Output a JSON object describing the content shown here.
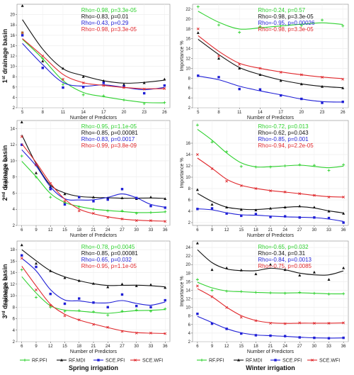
{
  "colors": {
    "RF.PFI": "#2fd12f",
    "RF.MDI": "#111111",
    "SCE.PFI": "#1f1fd6",
    "SCE.WFI": "#e0282c"
  },
  "legend": [
    "RF.PFI",
    "RF.MDI",
    "SCE.PFI",
    "SCE.WFI"
  ],
  "captions": [
    "Spring irrigation",
    "Winter irrigation"
  ],
  "row_labels": [
    {
      "pre": "1",
      "sup": "st",
      "post": " drainage basin"
    },
    {
      "pre": "2",
      "sup": "nd",
      "post": " drainage basin"
    },
    {
      "pre": "3",
      "sup": "rd",
      "post": " drainage basin"
    }
  ],
  "chart_data": [
    {
      "type": "scatter",
      "row": 0,
      "col": 0,
      "xlabel": "Number of Predictors",
      "ylabel": "",
      "xticks": [
        5,
        8,
        11,
        14,
        17,
        20,
        23,
        26
      ],
      "yticks": [
        2,
        4,
        6,
        8,
        10,
        12,
        14,
        16,
        18,
        20
      ],
      "xlim": [
        4.2,
        26.8
      ],
      "ylim": [
        2,
        22
      ],
      "stats": [
        "Rho=-0.98, p=3.3e-05",
        "Rho=-0.83, p=0.01",
        "Rho=-0.43, p=0.29",
        "Rho=-0.98, p=3.3e-05"
      ],
      "series": [
        {
          "name": "RF.PFI",
          "x": [
            5,
            8,
            11,
            14,
            17,
            20,
            23,
            26
          ],
          "values": [
            16.5,
            11.5,
            6.5,
            4.5,
            4.3,
            3.5,
            2.8,
            3.0
          ]
        },
        {
          "name": "RF.MDI",
          "x": [
            5,
            8,
            11,
            14,
            17,
            20,
            23,
            26
          ],
          "values": [
            21.7,
            11.0,
            9.6,
            8.0,
            7.2,
            6.5,
            6.8,
            7.5
          ]
        },
        {
          "name": "SCE.PFI",
          "x": [
            5,
            8,
            11,
            14,
            17,
            20,
            23,
            26
          ],
          "values": [
            16.0,
            9.7,
            5.9,
            6.0,
            6.8,
            6.1,
            4.8,
            6.3
          ]
        },
        {
          "name": "SCE.WFI",
          "x": [
            5,
            8,
            11,
            14,
            17,
            20,
            23,
            26
          ],
          "values": [
            16.5,
            12.0,
            7.5,
            6.8,
            6.3,
            5.9,
            5.6,
            5.7
          ]
        }
      ]
    },
    {
      "type": "scatter",
      "row": 0,
      "col": 1,
      "xlabel": "Number of Predictors",
      "ylabel": "Importance %",
      "xticks": [
        5,
        8,
        11,
        14,
        17,
        20,
        23,
        26
      ],
      "yticks": [
        2,
        4,
        6,
        8,
        10,
        12,
        14,
        16,
        18,
        20,
        22
      ],
      "xlim": [
        4.2,
        26.8
      ],
      "ylim": [
        2,
        23
      ],
      "stats": [
        "Rho=-0.24, p=0.57",
        "Rho=-0.98, p=3.3e-05",
        "Rho=-0.95, p=0.00026",
        "Rho=-0.98, p=3.3e-05"
      ],
      "series": [
        {
          "name": "RF.PFI",
          "x": [
            5,
            8,
            11,
            14,
            17,
            20,
            23,
            26
          ],
          "values": [
            22.5,
            18.8,
            17.3,
            18.5,
            18.6,
            18.7,
            19.8,
            18.6
          ]
        },
        {
          "name": "RF.MDI",
          "x": [
            5,
            8,
            11,
            14,
            17,
            20,
            23,
            26
          ],
          "values": [
            17.2,
            12.0,
            10.0,
            8.7,
            7.5,
            6.8,
            6.3,
            6.0
          ]
        },
        {
          "name": "SCE.PFI",
          "x": [
            5,
            8,
            11,
            14,
            17,
            20,
            23,
            26
          ],
          "values": [
            8.5,
            8.2,
            5.8,
            5.7,
            4.5,
            3.8,
            3.0,
            3.2
          ]
        },
        {
          "name": "SCE.WFI",
          "x": [
            5,
            8,
            11,
            14,
            17,
            20,
            23,
            26
          ],
          "values": [
            18.0,
            12.5,
            10.8,
            10.0,
            9.2,
            8.7,
            8.2,
            7.8
          ]
        }
      ]
    },
    {
      "type": "scatter",
      "row": 1,
      "col": 0,
      "xlabel": "Number of Predictors",
      "ylabel": "Importance %",
      "xticks": [
        6,
        9,
        12,
        15,
        18,
        21,
        24,
        27,
        30,
        33,
        36
      ],
      "yticks": [
        2,
        4,
        6,
        8,
        10,
        12,
        14
      ],
      "xlim": [
        5,
        37
      ],
      "ylim": [
        2,
        15
      ],
      "stats": [
        "Rho=-0.95, p=1.1e-05",
        "Rho=-0.85, p=0.00081",
        "Rho=-0.83, p=0.0017",
        "Rho=-0.99, p=3.8e-09"
      ],
      "series": [
        {
          "name": "RF.PFI",
          "x": [
            6,
            9,
            12,
            15,
            18,
            21,
            24,
            27,
            30,
            33,
            36
          ],
          "values": [
            10.6,
            8.0,
            5.5,
            4.8,
            4.3,
            4.0,
            3.8,
            3.8,
            3.5,
            3.6,
            3.7
          ]
        },
        {
          "name": "RF.MDI",
          "x": [
            6,
            9,
            12,
            15,
            18,
            21,
            24,
            27,
            30,
            33,
            36
          ],
          "values": [
            14.8,
            8.5,
            6.8,
            5.9,
            5.5,
            5.5,
            5.4,
            5.4,
            5.3,
            5.5,
            5.3
          ]
        },
        {
          "name": "SCE.PFI",
          "x": [
            6,
            9,
            12,
            15,
            18,
            21,
            24,
            27,
            30,
            33,
            36
          ],
          "values": [
            12.0,
            9.5,
            6.5,
            4.6,
            5.5,
            5.0,
            5.2,
            6.5,
            5.4,
            4.4,
            4.2
          ]
        },
        {
          "name": "SCE.WFI",
          "x": [
            6,
            9,
            12,
            15,
            18,
            21,
            24,
            27,
            30,
            33,
            36
          ],
          "values": [
            13.0,
            9.5,
            7.2,
            5.0,
            3.8,
            3.5,
            3.0,
            2.8,
            2.6,
            2.6,
            2.5
          ]
        }
      ]
    },
    {
      "type": "scatter",
      "row": 1,
      "col": 1,
      "xlabel": "Number of Predictors",
      "ylabel": "Importance %",
      "xticks": [
        6,
        9,
        12,
        15,
        18,
        21,
        24,
        27,
        30,
        33,
        36
      ],
      "yticks": [
        2,
        4,
        6,
        8,
        10,
        12,
        14,
        16
      ],
      "xlim": [
        5,
        37
      ],
      "ylim": [
        1.5,
        20
      ],
      "stats": [
        "Rho=-0.72, p=0.013",
        "Rho=-0.62, p=0.043",
        "Rho=-0.85, p=0.001",
        "Rho=-0.94, p=2.2e-05"
      ],
      "series": [
        {
          "name": "RF.PFI",
          "x": [
            6,
            9,
            12,
            15,
            18,
            21,
            24,
            27,
            30,
            33,
            36
          ],
          "values": [
            19.2,
            16.2,
            14.5,
            11.9,
            11.8,
            11.8,
            12.0,
            12.2,
            12.1,
            11.2,
            12.2
          ]
        },
        {
          "name": "RF.MDI",
          "x": [
            6,
            9,
            12,
            15,
            18,
            21,
            24,
            27,
            30,
            33,
            36
          ],
          "values": [
            7.8,
            5.2,
            4.7,
            4.3,
            4.2,
            4.5,
            4.7,
            4.9,
            4.7,
            4.0,
            3.6
          ]
        },
        {
          "name": "SCE.PFI",
          "x": [
            6,
            9,
            12,
            15,
            18,
            21,
            24,
            27,
            30,
            33,
            36
          ],
          "values": [
            4.4,
            4.5,
            3.6,
            3.2,
            3.5,
            3.0,
            3.1,
            2.9,
            2.9,
            2.8,
            2.0
          ]
        },
        {
          "name": "SCE.WFI",
          "x": [
            6,
            9,
            12,
            15,
            18,
            21,
            24,
            27,
            30,
            33,
            36
          ],
          "values": [
            14.0,
            11.5,
            9.3,
            8.5,
            8.0,
            7.6,
            7.4,
            7.1,
            6.8,
            6.5,
            6.5
          ]
        }
      ]
    },
    {
      "type": "scatter",
      "row": 2,
      "col": 0,
      "xlabel": "Number of Predictors",
      "ylabel": "Importance %",
      "xticks": [
        6,
        9,
        12,
        15,
        18,
        21,
        24,
        27,
        30,
        33,
        36
      ],
      "yticks": [
        2,
        4,
        6,
        8,
        10,
        12,
        14,
        16,
        18
      ],
      "xlim": [
        5,
        37
      ],
      "ylim": [
        2,
        19.5
      ],
      "stats": [
        "Rho=-0.78, p=0.0045",
        "Rho=-0.85, p=0.00081",
        "Rho=-0.65, p=0.032",
        "Rho=-0.95, p=1.1e-05"
      ],
      "series": [
        {
          "name": "RF.PFI",
          "x": [
            6,
            9,
            12,
            15,
            18,
            21,
            24,
            27,
            30,
            33,
            36
          ],
          "values": [
            14.5,
            9.7,
            8.0,
            7.3,
            7.4,
            7.2,
            6.6,
            7.3,
            7.5,
            7.3,
            7.7
          ]
        },
        {
          "name": "RF.MDI",
          "x": [
            6,
            9,
            12,
            15,
            18,
            21,
            24,
            27,
            30,
            33,
            36
          ],
          "values": [
            18.8,
            15.6,
            14.3,
            13.1,
            12.6,
            12.1,
            11.5,
            12.0,
            11.7,
            11.9,
            11.4
          ]
        },
        {
          "name": "SCE.PFI",
          "x": [
            6,
            9,
            12,
            15,
            18,
            21,
            24,
            27,
            30,
            33,
            36
          ],
          "values": [
            17.0,
            15.0,
            10.3,
            8.6,
            9.5,
            8.8,
            8.0,
            10.2,
            8.2,
            8.0,
            9.2
          ]
        },
        {
          "name": "SCE.WFI",
          "x": [
            6,
            9,
            12,
            15,
            18,
            21,
            24,
            27,
            30,
            33,
            36
          ],
          "values": [
            16.5,
            11.0,
            8.3,
            6.5,
            5.8,
            5.0,
            4.5,
            3.8,
            3.5,
            3.5,
            3.4
          ]
        }
      ]
    },
    {
      "type": "scatter",
      "row": 2,
      "col": 1,
      "xlabel": "Number of Predictors",
      "ylabel": "Importance %",
      "xticks": [
        6,
        9,
        12,
        15,
        18,
        21,
        24,
        27,
        30,
        33,
        36
      ],
      "yticks": [
        2,
        4,
        6,
        8,
        10,
        12,
        14,
        16,
        18,
        20,
        22,
        24
      ],
      "xlim": [
        5,
        37
      ],
      "ylim": [
        2,
        25.5
      ],
      "stats": [
        "Rho=-0.65, p=0.032",
        "Rho=-0.34, p=0.31",
        "Rho=-0.84, p=0.0013",
        "Rho=-0.75, p=0.0085"
      ],
      "series": [
        {
          "name": "RF.PFI",
          "x": [
            6,
            9,
            12,
            15,
            18,
            21,
            24,
            27,
            30,
            33,
            36
          ],
          "values": [
            16.5,
            14.0,
            13.8,
            13.7,
            13.5,
            13.4,
            13.3,
            13.5,
            13.3,
            13.1,
            13.2
          ]
        },
        {
          "name": "RF.MDI",
          "x": [
            6,
            9,
            12,
            15,
            18,
            21,
            24,
            27,
            30,
            33,
            36
          ],
          "values": [
            25.0,
            18.8,
            19.2,
            18.7,
            17.8,
            20.0,
            18.8,
            17.5,
            18.2,
            16.5,
            19.2
          ]
        },
        {
          "name": "SCE.PFI",
          "x": [
            6,
            9,
            12,
            15,
            18,
            21,
            24,
            27,
            30,
            33,
            36
          ],
          "values": [
            8.5,
            6.2,
            5.0,
            3.9,
            3.5,
            3.4,
            3.3,
            3.0,
            2.9,
            2.8,
            2.9
          ]
        },
        {
          "name": "SCE.WFI",
          "x": [
            6,
            9,
            12,
            15,
            18,
            21,
            24,
            27,
            30,
            33,
            36
          ],
          "values": [
            15.0,
            12.5,
            10.0,
            7.7,
            6.9,
            6.3,
            6.2,
            6.4,
            6.3,
            6.3,
            6.4
          ]
        }
      ]
    }
  ]
}
